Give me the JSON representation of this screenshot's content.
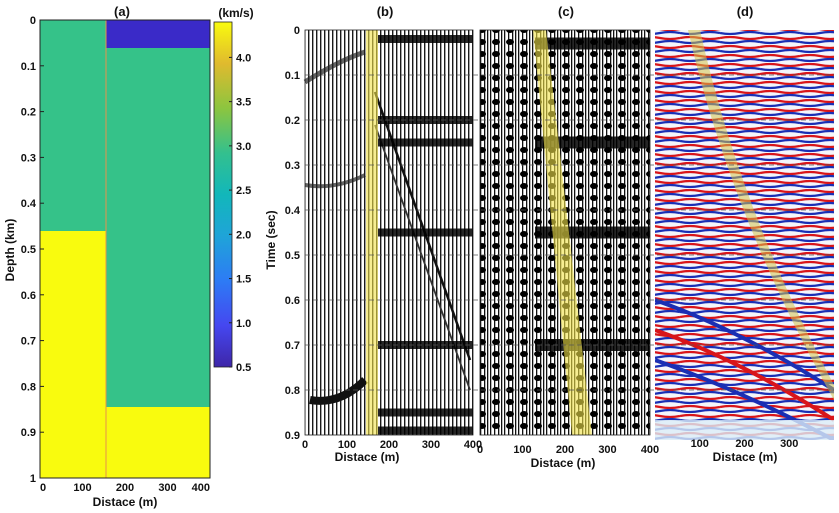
{
  "panels": {
    "a": {
      "title": "(a)",
      "ylabel": "Depth (km)",
      "xlabel": "Distace (m)",
      "yticks": [
        "0",
        "0.1",
        "0.2",
        "0.3",
        "0.4",
        "0.5",
        "0.6",
        "0.7",
        "0.8",
        "0.9",
        "1"
      ],
      "xticks": [
        "0",
        "100",
        "200",
        "300",
        "400"
      ]
    },
    "b": {
      "title": "(b)",
      "xlabel": "Distace (m)",
      "xticks": [
        "0",
        "100",
        "200",
        "300",
        "400"
      ]
    },
    "c": {
      "title": "(c)",
      "xlabel": "Distace (m)",
      "xticks": [
        "0",
        "100",
        "200",
        "300",
        "400"
      ]
    },
    "d": {
      "title": "(d)",
      "xlabel": "Distace (m)",
      "xticks": [
        "100",
        "200",
        "300"
      ]
    }
  },
  "time_axis": {
    "label": "Time (sec)",
    "ticks": [
      "0",
      "0.1",
      "0.2",
      "0.3",
      "0.4",
      "0.5",
      "0.6",
      "0.7",
      "0.8",
      "0.9"
    ]
  },
  "colorbar": {
    "unit": "(km/s)",
    "ticks": [
      "4.0",
      "3.5",
      "3.0",
      "2.5",
      "2.0",
      "1.5",
      "1.0",
      "0.5"
    ]
  },
  "chart_data": [
    {
      "type": "heatmap",
      "title": "(a)",
      "xlabel": "Distace (m)",
      "ylabel": "Depth (km)",
      "xlim": [
        0,
        400
      ],
      "ylim": [
        1,
        0
      ],
      "colorbar": {
        "label": "(km/s)",
        "range": [
          0.5,
          4.4
        ]
      },
      "velocity_blocks": [
        {
          "x": [
            0,
            160
          ],
          "depth": [
            0,
            0.46
          ],
          "velocity_km_s": 3.0
        },
        {
          "x": [
            0,
            160
          ],
          "depth": [
            0.46,
            1.0
          ],
          "velocity_km_s": 4.3
        },
        {
          "x": [
            160,
            400
          ],
          "depth": [
            0,
            0.06
          ],
          "velocity_km_s": 0.5
        },
        {
          "x": [
            160,
            400
          ],
          "depth": [
            0.06,
            0.855
          ],
          "velocity_km_s": 3.0
        },
        {
          "x": [
            160,
            400
          ],
          "depth": [
            0.855,
            1.0
          ],
          "velocity_km_s": 4.3
        }
      ]
    },
    {
      "type": "scatter",
      "title": "(b)",
      "xlabel": "Distace (m)",
      "ylabel": "Time (sec)",
      "xlim": [
        0,
        400
      ],
      "ylim": [
        0.9,
        0
      ],
      "reflection_times_sec": [
        0.02,
        0.2,
        0.25,
        0.45,
        0.7,
        0.85,
        0.89
      ],
      "highlight_band": {
        "x_at_t0": 160,
        "x_at_tmax": 165
      }
    },
    {
      "type": "scatter",
      "title": "(c)",
      "xlabel": "Distace (m)",
      "ylabel": "Time (sec)",
      "xlim": [
        0,
        400
      ],
      "ylim": [
        0.9,
        0
      ],
      "reflection_times_sec": [
        0.03,
        0.25,
        0.45,
        0.7
      ],
      "highlight_band": {
        "x_at_t0": 150,
        "x_at_tmax": 255
      }
    },
    {
      "type": "scatter",
      "title": "(d)",
      "xlabel": "Distace (m)",
      "ylabel": "Time (sec)",
      "xlim": [
        0,
        400
      ],
      "ylim": [
        0.9,
        0
      ],
      "highlight_band": {
        "x_at_t0": 80,
        "x_at_tmax": 390
      }
    }
  ]
}
